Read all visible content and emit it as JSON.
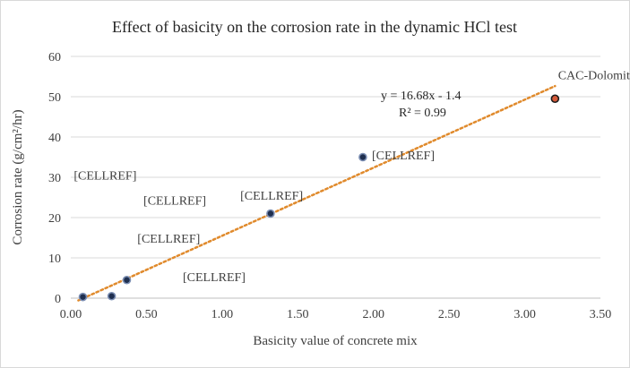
{
  "chart_data": {
    "type": "scatter",
    "title": "Effect of basicity on the corrosion rate in the dynamic HCl test",
    "xlabel": "Basicity value of concrete mix",
    "ylabel": "Corrosion rate (g/cm²/hr)",
    "xlim": [
      0,
      3.5
    ],
    "ylim": [
      0,
      60
    ],
    "x_ticks": [
      "0.00",
      "0.50",
      "1.00",
      "1.50",
      "2.00",
      "2.50",
      "3.00",
      "3.50"
    ],
    "y_ticks": [
      "0",
      "10",
      "20",
      "30",
      "40",
      "50",
      "60"
    ],
    "grid": "horizontal",
    "legend": "none",
    "marker_color": "#1f2f4f",
    "trendline_color": "#e08a2c",
    "series": [
      {
        "points": [
          {
            "x": 0.08,
            "y": 0.3
          },
          {
            "x": 0.27,
            "y": 0.5
          },
          {
            "x": 0.37,
            "y": 4.5
          },
          {
            "x": 1.32,
            "y": 21
          },
          {
            "x": 1.93,
            "y": 35
          },
          {
            "x": 3.2,
            "y": 49.5
          }
        ]
      }
    ],
    "trendline": {
      "type": "linear",
      "slope": 16.68,
      "intercept": -1.4,
      "x_range": [
        0.05,
        3.2
      ],
      "equation_label": "y = 16.68x - 1.4",
      "r2_label": "R² = 0.99"
    },
    "annotations": [
      {
        "text": "CAC-Dolomite",
        "x": 3.22,
        "y": 54.3
      },
      {
        "text": "[CELLREF]",
        "x": 1.99,
        "y": 34.5
      },
      {
        "text": "[CELLREF]",
        "x": 1.12,
        "y": 24.4
      },
      {
        "text": "[CELLREF]",
        "x": 0.02,
        "y": 29.5
      },
      {
        "text": "[CELLREF]",
        "x": 0.48,
        "y": 23.2
      },
      {
        "text": "[CELLREF]",
        "x": 0.44,
        "y": 13.8
      },
      {
        "text": "[CELLREF]",
        "x": 0.74,
        "y": 4.2
      }
    ]
  }
}
